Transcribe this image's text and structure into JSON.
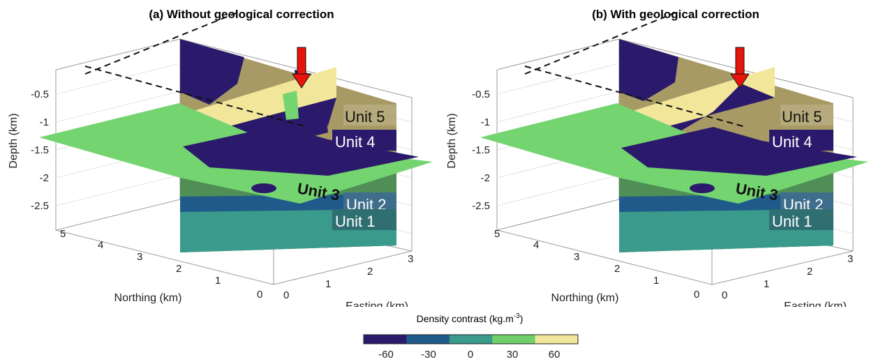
{
  "panels": [
    {
      "title": "(a) Without geological correction",
      "depth_label": "Depth (km)",
      "northing_label": "Northing (km)",
      "easting_label": "Easting (km)",
      "depth_ticks": [
        "-0.5",
        "-1",
        "-1.5",
        "-2",
        "-2.5"
      ],
      "northing_ticks": [
        "5",
        "4",
        "3",
        "2",
        "1",
        "0"
      ],
      "easting_ticks": [
        "0",
        "1",
        "2",
        "3"
      ],
      "units": [
        "Unit 5",
        "Unit 4",
        "Unit 3",
        "Unit 2",
        "Unit 1"
      ]
    },
    {
      "title": "(b) With geological correction",
      "depth_label": "Depth (km)",
      "northing_label": "Northing (km)",
      "easting_label": "Easting (km)",
      "depth_ticks": [
        "-0.5",
        "-1",
        "-1.5",
        "-2",
        "-2.5"
      ],
      "northing_ticks": [
        "5",
        "4",
        "3",
        "2",
        "1",
        "0"
      ],
      "easting_ticks": [
        "0",
        "1",
        "2",
        "3"
      ],
      "units": [
        "Unit 5",
        "Unit 4",
        "Unit 3",
        "Unit 2",
        "Unit 1"
      ]
    }
  ],
  "colorbar": {
    "label": "Density contrast (kg.m",
    "label_sup": "-3",
    "label_close": ")",
    "ticks": [
      "-60",
      "-30",
      "0",
      "30",
      "60"
    ],
    "colors": [
      "#2b1a6b",
      "#1f5a8a",
      "#3a9a8c",
      "#6fcf6a",
      "#f1e69a"
    ]
  },
  "colors": {
    "unit5": "#f1e69a",
    "unit4": "#2b1a6b",
    "unit3": "#74d470",
    "unit2": "#1f5a8a",
    "unit1": "#3a9a8c",
    "arrow": "#e8140c"
  }
}
